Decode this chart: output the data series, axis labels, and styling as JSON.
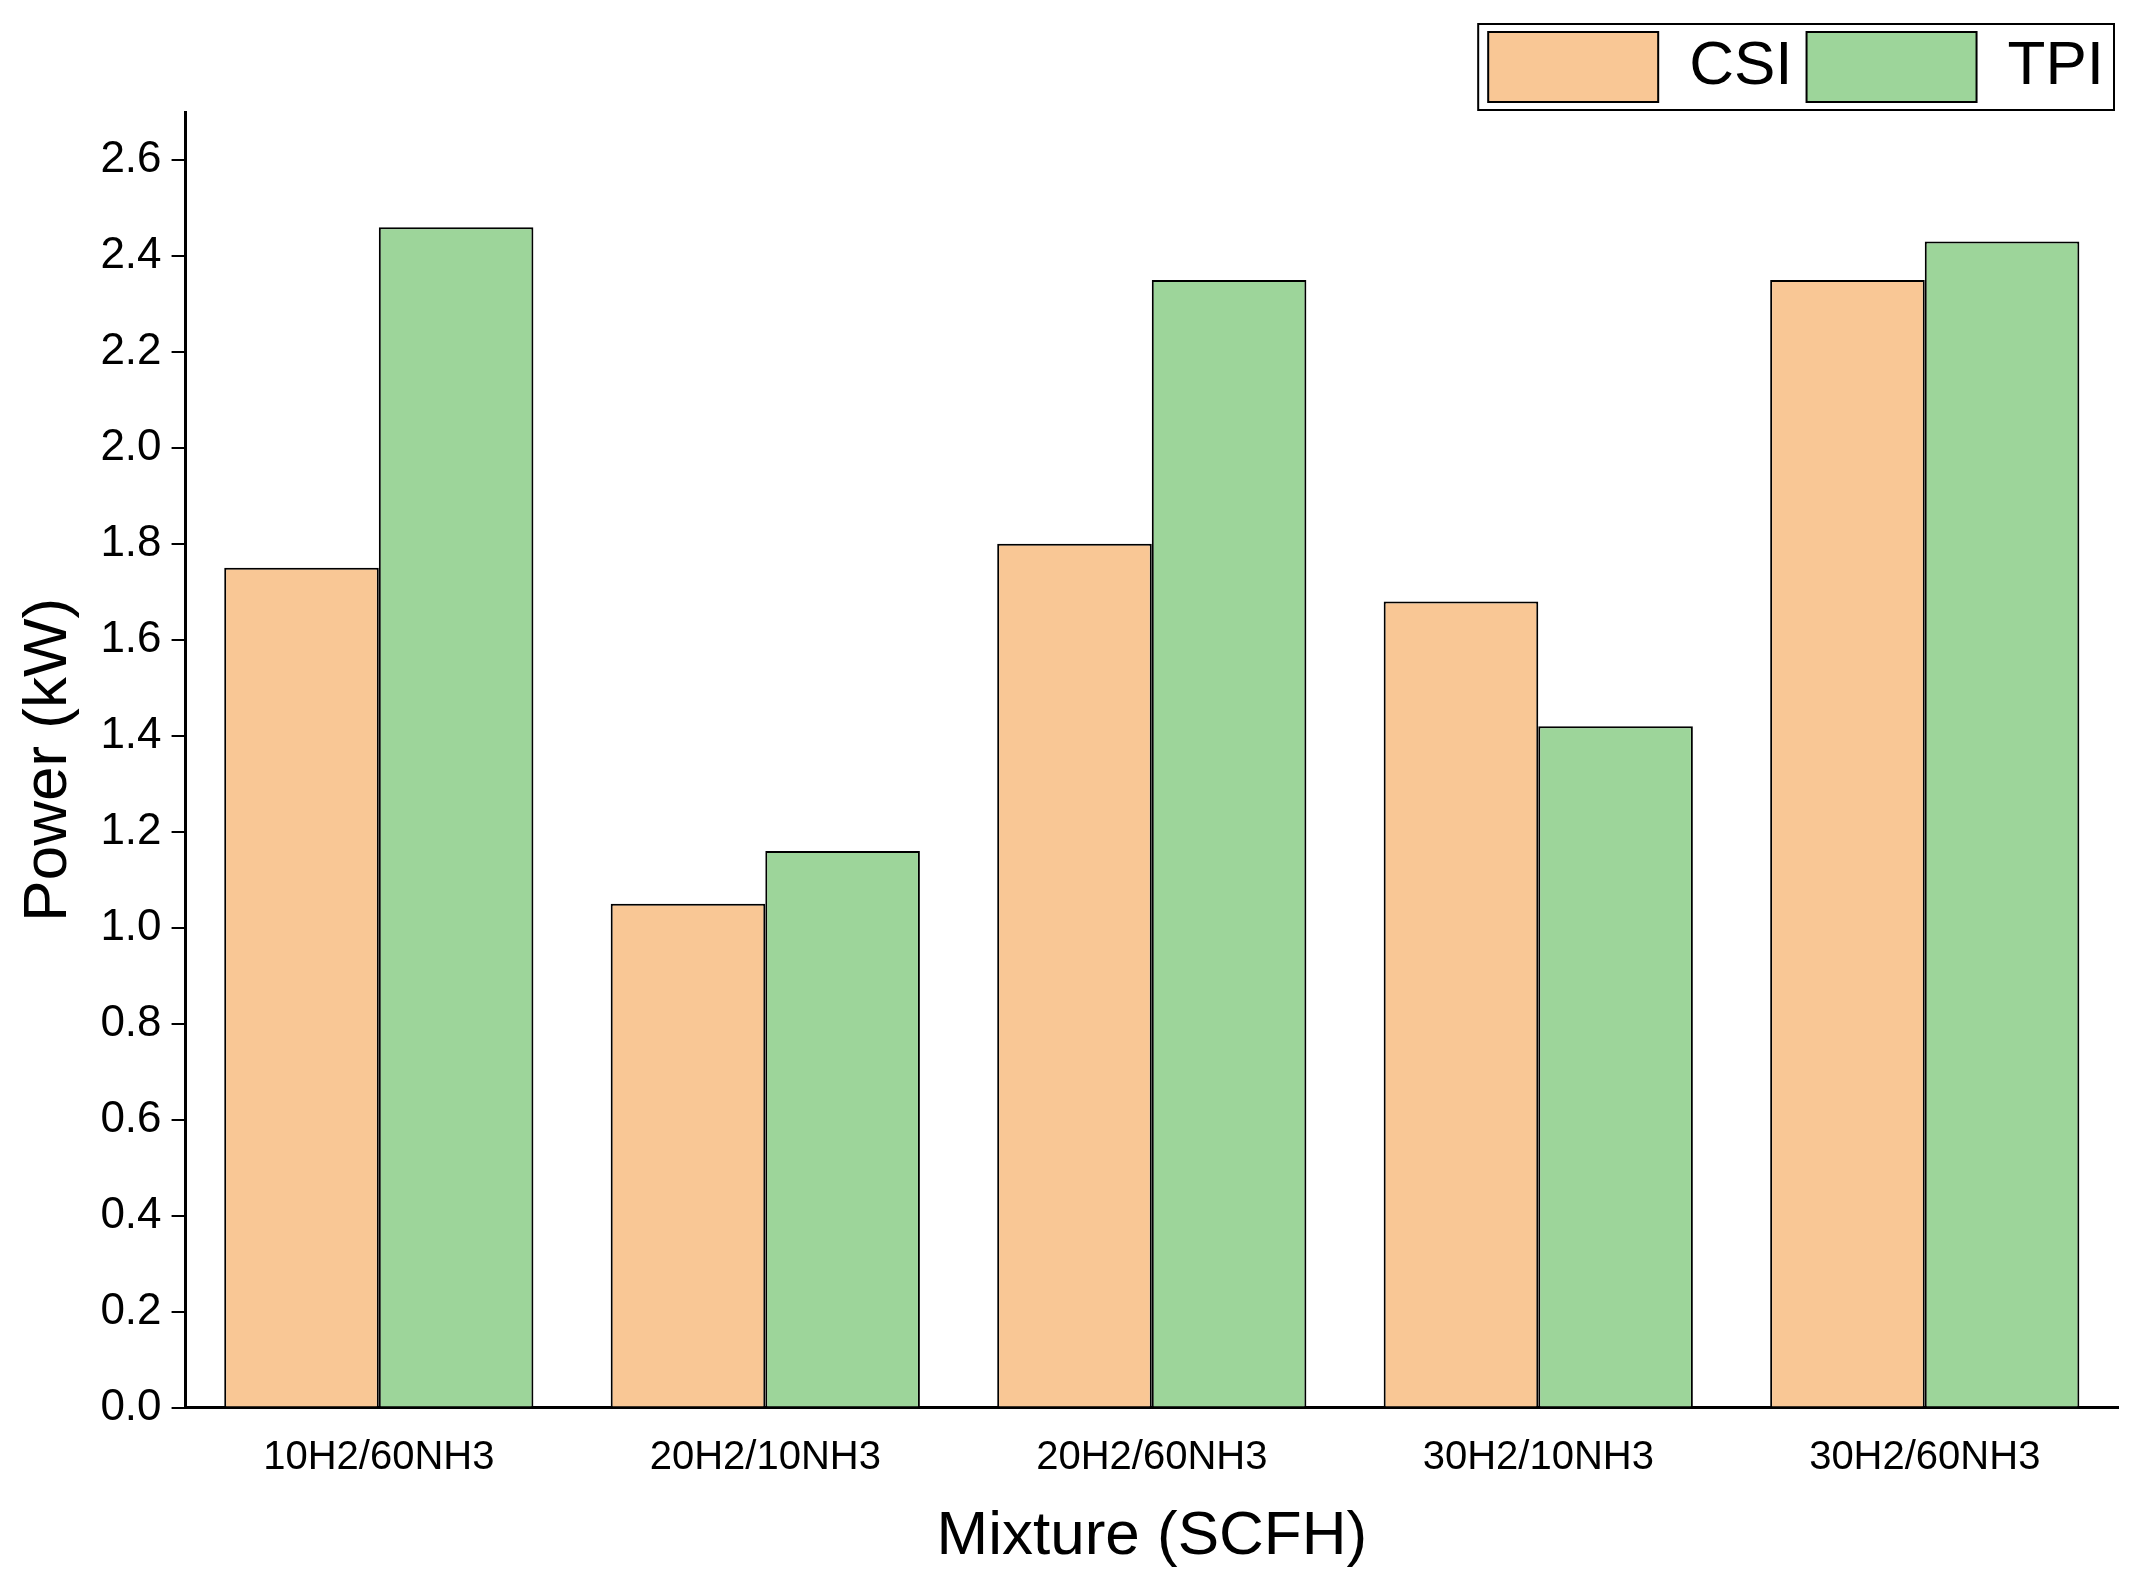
{
  "chart_data": {
    "type": "bar",
    "xlabel": "Mixture (SCFH)",
    "ylabel": "Power (kW)",
    "categories": [
      "10H2/60NH3",
      "20H2/10NH3",
      "20H2/60NH3",
      "30H2/10NH3",
      "30H2/60NH3"
    ],
    "series": [
      {
        "name": "CSI",
        "color": "#f9c795",
        "values": [
          1.75,
          1.05,
          1.8,
          1.68,
          2.35
        ]
      },
      {
        "name": "TPI",
        "color": "#9dd59a",
        "values": [
          2.46,
          1.16,
          2.35,
          1.42,
          2.43
        ]
      }
    ],
    "ylim": [
      0,
      2.7
    ],
    "yticks": [
      {
        "value": 0,
        "label": "0.0"
      },
      {
        "value": 0.2,
        "label": "0.2"
      },
      {
        "value": 0.4,
        "label": "0.4"
      },
      {
        "value": 0.6,
        "label": "0.6"
      },
      {
        "value": 0.8,
        "label": "0.8"
      },
      {
        "value": 1,
        "label": "1.0"
      },
      {
        "value": 1.2,
        "label": "1.2"
      },
      {
        "value": 1.4,
        "label": "1.4"
      },
      {
        "value": 1.6,
        "label": "1.6"
      },
      {
        "value": 1.8,
        "label": "1.8"
      },
      {
        "value": 2,
        "label": "2.0"
      },
      {
        "value": 2.2,
        "label": "2.2"
      },
      {
        "value": 2.4,
        "label": "2.4"
      },
      {
        "value": 2.6,
        "label": "2.6"
      }
    ],
    "grid": false,
    "legend": "top right"
  }
}
